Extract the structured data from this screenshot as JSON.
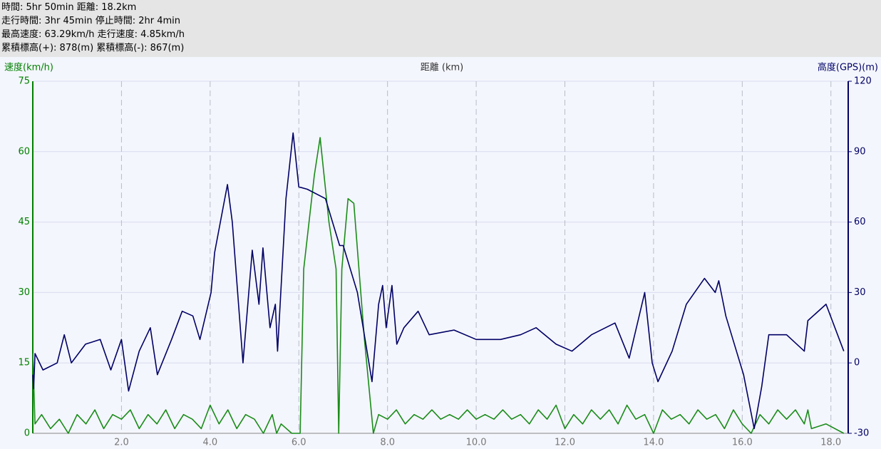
{
  "summary": [
    "時間: 5hr 50min 距離: 18.2km",
    "走行時間: 3hr 45min 停止時間: 2hr 4min",
    "最高速度: 63.29km/h 走行速度: 4.85km/h",
    "累積標高(+): 878(m) 累積標高(-): 867(m)"
  ],
  "chart_data": {
    "type": "line",
    "ylabel": "速度(km/h)",
    "xlabel": "距離 (km)",
    "y2label": "高度(GPS)(m)",
    "xlim": [
      0,
      18.39
    ],
    "ylim": [
      0,
      75
    ],
    "y2lim": [
      -30,
      120
    ],
    "xticks": [
      {
        "value": 2,
        "label": "2.0"
      },
      {
        "value": 4,
        "label": "4.0"
      },
      {
        "value": 6,
        "label": "6.0"
      },
      {
        "value": 8,
        "label": "8.0"
      },
      {
        "value": 10,
        "label": "10.0"
      },
      {
        "value": 12,
        "label": "12.0"
      },
      {
        "value": 14,
        "label": "14.0"
      },
      {
        "value": 16,
        "label": "16.0"
      },
      {
        "value": 18,
        "label": "18.0"
      }
    ],
    "yticks": [
      0,
      15,
      30,
      45,
      60,
      75
    ],
    "y2ticks": [
      -30,
      0,
      30,
      60,
      90,
      120
    ],
    "grid": true,
    "left_axis_color": "#008000",
    "right_axis_color": "#000066",
    "series": [
      {
        "name": "速度",
        "color": "#1a8c1a",
        "x": [
          0,
          0.05,
          0.2,
          0.4,
          0.6,
          0.8,
          1.0,
          1.2,
          1.4,
          1.6,
          1.8,
          2.0,
          2.2,
          2.4,
          2.6,
          2.8,
          3.0,
          3.2,
          3.4,
          3.6,
          3.8,
          4.0,
          4.2,
          4.4,
          4.6,
          4.8,
          5.0,
          5.2,
          5.4,
          5.5,
          5.6,
          5.84,
          6.03,
          6.11,
          6.35,
          6.48,
          6.68,
          6.84,
          6.9,
          6.97,
          7.11,
          7.24,
          7.48,
          7.68,
          7.8,
          8.0,
          8.2,
          8.4,
          8.6,
          8.8,
          9.0,
          9.2,
          9.4,
          9.6,
          9.8,
          10.0,
          10.2,
          10.4,
          10.6,
          10.8,
          11.0,
          11.2,
          11.4,
          11.6,
          11.8,
          12.0,
          12.2,
          12.4,
          12.6,
          12.8,
          13.0,
          13.2,
          13.4,
          13.6,
          13.8,
          14.0,
          14.2,
          14.4,
          14.6,
          14.8,
          15.0,
          15.2,
          15.4,
          15.6,
          15.8,
          16.0,
          16.2,
          16.4,
          16.6,
          16.8,
          17.0,
          17.2,
          17.4,
          17.48,
          17.56,
          17.89,
          18.29
        ],
        "values": [
          17,
          2,
          4,
          1,
          3,
          0,
          4,
          2,
          5,
          1,
          4,
          3,
          5,
          1,
          4,
          2,
          5,
          1,
          4,
          3,
          1,
          6,
          2,
          5,
          1,
          4,
          3,
          0,
          4,
          0,
          2,
          0,
          0,
          35,
          55,
          63,
          45,
          35,
          0,
          35,
          50,
          49,
          20,
          0,
          4,
          3,
          5,
          2,
          4,
          3,
          5,
          3,
          4,
          3,
          5,
          3,
          4,
          3,
          5,
          3,
          4,
          2,
          5,
          3,
          6,
          1,
          4,
          2,
          5,
          3,
          5,
          2,
          6,
          3,
          4,
          0,
          5,
          3,
          4,
          2,
          5,
          3,
          4,
          1,
          5,
          2,
          0,
          4,
          2,
          5,
          3,
          5,
          2,
          5,
          1,
          2,
          0
        ]
      },
      {
        "name": "高度",
        "color": "#000066",
        "axis": "y2",
        "x": [
          0,
          0.02,
          0.05,
          0.23,
          0.55,
          0.71,
          0.87,
          1.19,
          1.52,
          1.76,
          2.0,
          2.16,
          2.4,
          2.65,
          2.81,
          3.13,
          3.37,
          3.61,
          3.77,
          4.02,
          4.1,
          4.39,
          4.5,
          4.74,
          4.95,
          5.1,
          5.19,
          5.35,
          5.47,
          5.52,
          5.71,
          5.87,
          6.0,
          6.19,
          6.6,
          6.76,
          6.92,
          7.0,
          7.32,
          7.65,
          7.8,
          7.89,
          7.97,
          8.1,
          8.21,
          8.37,
          8.69,
          8.94,
          9.5,
          10.0,
          10.55,
          11.0,
          11.35,
          11.8,
          12.16,
          12.6,
          13.13,
          13.45,
          13.8,
          13.97,
          14.1,
          14.42,
          14.74,
          15.15,
          15.39,
          15.47,
          15.63,
          15.87,
          16.03,
          16.27,
          16.44,
          16.6,
          17.0,
          17.4,
          17.48,
          17.89,
          18.29
        ],
        "values": [
          -5,
          -11,
          4,
          -3,
          0,
          12,
          0,
          8,
          10,
          -3,
          10,
          -12,
          5,
          15,
          -5,
          10,
          22,
          20,
          10,
          30,
          47,
          76,
          60,
          0,
          48,
          25,
          49,
          15,
          25,
          5,
          70,
          98,
          75,
          74,
          70,
          60,
          50,
          50,
          30,
          -8,
          25,
          33,
          15,
          33,
          8,
          15,
          22,
          12,
          14,
          10,
          10,
          12,
          15,
          8,
          5,
          12,
          17,
          2,
          30,
          0,
          -8,
          5,
          25,
          36,
          30,
          35,
          20,
          5,
          -5,
          -28,
          -10,
          12,
          12,
          5,
          18,
          25,
          5
        ]
      }
    ]
  }
}
